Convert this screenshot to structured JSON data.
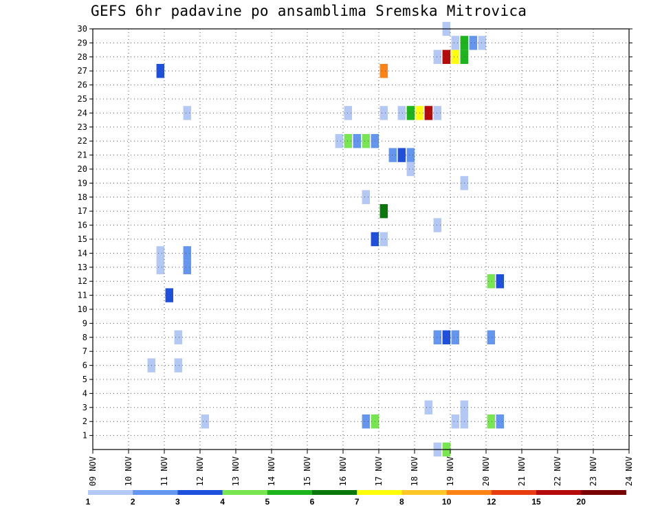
{
  "chart_data": {
    "type": "heatmap",
    "title": "GEFS 6hr padavine po ansamblima Sremska Mitrovica",
    "x_tick_labels": [
      "09 NOV",
      "10 NOV",
      "11 NOV",
      "12 NOV",
      "13 NOV",
      "14 NOV",
      "15 NOV",
      "16 NOV",
      "17 NOV",
      "18 NOV",
      "19 NOV",
      "20 NOV",
      "21 NOV",
      "22 NOV",
      "23 NOV",
      "24 NOV"
    ],
    "y_tick_labels": [
      "1",
      "2",
      "3",
      "4",
      "5",
      "6",
      "7",
      "8",
      "9",
      "10",
      "11",
      "12",
      "13",
      "14",
      "15",
      "16",
      "17",
      "18",
      "19",
      "20",
      "21",
      "22",
      "23",
      "24",
      "25",
      "26",
      "27",
      "28",
      "29",
      "30"
    ],
    "xlim": [
      0,
      60
    ],
    "ylim": [
      0,
      30
    ],
    "grid": true,
    "color_scale": {
      "labels": [
        "1",
        "2",
        "3",
        "4",
        "5",
        "6",
        "7",
        "8",
        "10",
        "12",
        "15",
        "20"
      ],
      "colors": [
        "#b4c8f5",
        "#6496f0",
        "#1e50dc",
        "#78e650",
        "#1eb41e",
        "#0a780a",
        "#ffff0a",
        "#ffc828",
        "#ff8214",
        "#e63c0f",
        "#b40a0a",
        "#780000"
      ]
    },
    "cells": [
      {
        "step": 39,
        "member": 30,
        "bin": 1
      },
      {
        "step": 40,
        "member": 29,
        "bin": 1
      },
      {
        "step": 41,
        "member": 29,
        "bin": 5
      },
      {
        "step": 42,
        "member": 29,
        "bin": 2
      },
      {
        "step": 43,
        "member": 29,
        "bin": 1
      },
      {
        "step": 38,
        "member": 28,
        "bin": 1
      },
      {
        "step": 39,
        "member": 28,
        "bin": 11
      },
      {
        "step": 40,
        "member": 28,
        "bin": 7
      },
      {
        "step": 41,
        "member": 28,
        "bin": 5
      },
      {
        "step": 7,
        "member": 27,
        "bin": 3
      },
      {
        "step": 32,
        "member": 27,
        "bin": 9
      },
      {
        "step": 10,
        "member": 24,
        "bin": 1
      },
      {
        "step": 28,
        "member": 24,
        "bin": 1
      },
      {
        "step": 32,
        "member": 24,
        "bin": 1
      },
      {
        "step": 34,
        "member": 24,
        "bin": 1
      },
      {
        "step": 35,
        "member": 24,
        "bin": 5
      },
      {
        "step": 36,
        "member": 24,
        "bin": 7
      },
      {
        "step": 37,
        "member": 24,
        "bin": 11
      },
      {
        "step": 38,
        "member": 24,
        "bin": 1
      },
      {
        "step": 27,
        "member": 22,
        "bin": 1
      },
      {
        "step": 28,
        "member": 22,
        "bin": 4
      },
      {
        "step": 29,
        "member": 22,
        "bin": 2
      },
      {
        "step": 30,
        "member": 22,
        "bin": 4
      },
      {
        "step": 31,
        "member": 22,
        "bin": 2
      },
      {
        "step": 33,
        "member": 21,
        "bin": 2
      },
      {
        "step": 34,
        "member": 21,
        "bin": 3
      },
      {
        "step": 35,
        "member": 21,
        "bin": 2
      },
      {
        "step": 35,
        "member": 20,
        "bin": 1
      },
      {
        "step": 41,
        "member": 19,
        "bin": 1
      },
      {
        "step": 30,
        "member": 18,
        "bin": 1
      },
      {
        "step": 32,
        "member": 17,
        "bin": 6
      },
      {
        "step": 38,
        "member": 16,
        "bin": 1
      },
      {
        "step": 31,
        "member": 15,
        "bin": 3
      },
      {
        "step": 32,
        "member": 15,
        "bin": 1
      },
      {
        "step": 7,
        "member": 14,
        "bin": 1
      },
      {
        "step": 10,
        "member": 14,
        "bin": 2
      },
      {
        "step": 7,
        "member": 13,
        "bin": 1
      },
      {
        "step": 10,
        "member": 13,
        "bin": 2
      },
      {
        "step": 44,
        "member": 12,
        "bin": 4
      },
      {
        "step": 45,
        "member": 12,
        "bin": 3
      },
      {
        "step": 8,
        "member": 11,
        "bin": 3
      },
      {
        "step": 9,
        "member": 8,
        "bin": 1
      },
      {
        "step": 38,
        "member": 8,
        "bin": 2
      },
      {
        "step": 39,
        "member": 8,
        "bin": 3
      },
      {
        "step": 40,
        "member": 8,
        "bin": 2
      },
      {
        "step": 44,
        "member": 8,
        "bin": 2
      },
      {
        "step": 6,
        "member": 6,
        "bin": 1
      },
      {
        "step": 9,
        "member": 6,
        "bin": 1
      },
      {
        "step": 37,
        "member": 3,
        "bin": 1
      },
      {
        "step": 41,
        "member": 3,
        "bin": 1
      },
      {
        "step": 12,
        "member": 2,
        "bin": 1
      },
      {
        "step": 30,
        "member": 2,
        "bin": 2
      },
      {
        "step": 31,
        "member": 2,
        "bin": 4
      },
      {
        "step": 40,
        "member": 2,
        "bin": 1
      },
      {
        "step": 41,
        "member": 2,
        "bin": 1
      },
      {
        "step": 44,
        "member": 2,
        "bin": 4
      },
      {
        "step": 45,
        "member": 2,
        "bin": 2
      },
      {
        "step": 38,
        "member": 0,
        "bin": 1
      },
      {
        "step": 39,
        "member": 0,
        "bin": 4
      }
    ]
  }
}
